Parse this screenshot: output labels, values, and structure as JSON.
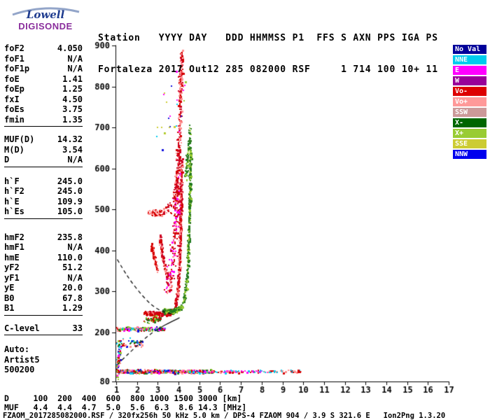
{
  "logo": {
    "name": "Lowell",
    "product": "DIGISONDE"
  },
  "header": {
    "line1": "Station   YYYY DAY   DDD HHMMSS P1  FFS S AXN PPS IGA PS",
    "line2": "Fortaleza 2017 Out12 285 082000 RSF     1 714 100 10+ 11"
  },
  "params": {
    "groups": [
      {
        "rows": [
          {
            "label": "foF2",
            "value": "4.050"
          },
          {
            "label": "foF1",
            "value": "N/A"
          },
          {
            "label": "foF1p",
            "value": "N/A"
          },
          {
            "label": "foE",
            "value": "1.41"
          },
          {
            "label": "foEp",
            "value": "1.25"
          },
          {
            "label": "fxI",
            "value": "4.50"
          },
          {
            "label": "foEs",
            "value": "3.75"
          },
          {
            "label": "fmin",
            "value": "1.35"
          }
        ]
      },
      {
        "rows": [
          {
            "label": "MUF(D)",
            "value": "14.32"
          },
          {
            "label": "M(D)",
            "value": "3.54"
          },
          {
            "label": "D",
            "value": "N/A"
          }
        ]
      },
      {
        "rows": [
          {
            "label": "h`F",
            "value": "245.0"
          },
          {
            "label": "h`F2",
            "value": "245.0"
          },
          {
            "label": "h`E",
            "value": "109.9"
          },
          {
            "label": "h`Es",
            "value": "105.0"
          }
        ]
      },
      {
        "rows": [
          {
            "label": "hmF2",
            "value": "235.8"
          },
          {
            "label": "hmF1",
            "value": "N/A"
          },
          {
            "label": "hmE",
            "value": "110.0"
          },
          {
            "label": "yF2",
            "value": "51.2"
          },
          {
            "label": "yF1",
            "value": "N/A"
          },
          {
            "label": "yE",
            "value": "20.0"
          },
          {
            "label": "B0",
            "value": "67.8"
          },
          {
            "label": "B1",
            "value": "1.29"
          }
        ]
      },
      {
        "rows": [
          {
            "label": "C-level",
            "value": "33"
          }
        ]
      },
      {
        "rows": [
          {
            "label": "Auto:",
            "value": ""
          },
          {
            "label": "Artist5",
            "value": ""
          },
          {
            "label": "500200",
            "value": ""
          }
        ]
      }
    ]
  },
  "legend": {
    "items": [
      {
        "label": "No Val",
        "color": "#000099"
      },
      {
        "label": "NNE",
        "color": "#00ccee"
      },
      {
        "label": "E",
        "color": "#ff00ff"
      },
      {
        "label": "W",
        "color": "#990099"
      },
      {
        "label": "Vo-",
        "color": "#dd0000"
      },
      {
        "label": "Vo+",
        "color": "#ff9999"
      },
      {
        "label": "SSW",
        "color": "#cc9999"
      },
      {
        "label": "X-",
        "color": "#006600"
      },
      {
        "label": "X+",
        "color": "#99cc33"
      },
      {
        "label": "SSE",
        "color": "#cccc33"
      },
      {
        "label": "NNW",
        "color": "#0000ee"
      }
    ]
  },
  "footer": {
    "d_line": "D     100  200  400  600  800 1000 1500 3000 [km]",
    "muf_line": "MUF   4.4  4.4  4.7  5.0  5.6  6.3  8.6 14.3 [MHz]",
    "info_line": "FZAOM_2017285082000.RSF / 320fx256h 50 kHz 5.0 km / DPS-4 FZAOM 904 / 3.9 S 321.6 E   Ion2Png 1.3.20"
  },
  "chart_data": {
    "type": "scatter",
    "title": "",
    "xlabel": "[MHz]",
    "ylabel": "[km]",
    "xlim": [
      1,
      17
    ],
    "ylim": [
      80,
      900
    ],
    "x_ticks": [
      1,
      2,
      3,
      4,
      5,
      6,
      7,
      8,
      9,
      10,
      11,
      12,
      13,
      14,
      15,
      16,
      17
    ],
    "y_ticks": [
      80,
      200,
      300,
      400,
      500,
      600,
      700,
      800,
      900
    ],
    "grid": false,
    "legend_position": "right",
    "muf_table": {
      "distances_km": [
        100,
        200,
        400,
        600,
        800,
        1000,
        1500,
        3000
      ],
      "muf_mhz": [
        4.4,
        4.4,
        4.7,
        5.0,
        5.6,
        6.3,
        8.6,
        14.3
      ]
    },
    "key_values": {
      "foF2_mhz": 4.05,
      "fxI_mhz": 4.5,
      "foEs_mhz": 3.75,
      "hF_km": 245.0,
      "hEs_km": 105.0,
      "hmF2_km": 235.8
    },
    "series": [
      {
        "name": "es-layer-dense",
        "anchors": [
          [
            1.0,
            104
          ],
          [
            5.6,
            104
          ]
        ],
        "count": 620,
        "jitter_f": 0.06,
        "jitter_h": 5,
        "colors": [
          "#d40000",
          "#d40000",
          "#d40000",
          "#ff8f8f",
          "#ff8f8f",
          "#ff00ff",
          "#00ccee",
          "#1111dd",
          "#1e7a1e",
          "#99cc33"
        ]
      },
      {
        "name": "es-layer-sparse",
        "anchors": [
          [
            5.6,
            104
          ],
          [
            8.2,
            104
          ]
        ],
        "count": 90,
        "jitter_f": 0.1,
        "jitter_h": 4,
        "colors": [
          "#ff8f8f",
          "#d40000",
          "#ff00ff",
          "#00ccee"
        ]
      },
      {
        "name": "es-layer-sparse-2",
        "anchors": [
          [
            8.3,
            104
          ],
          [
            9.9,
            104
          ]
        ],
        "count": 40,
        "jitter_f": 0.08,
        "jitter_h": 4,
        "colors": [
          "#ff8f8f",
          "#d40000",
          "#00ccee"
        ]
      },
      {
        "name": "es-upper-band",
        "anchors": [
          [
            1.0,
            208
          ],
          [
            3.35,
            208
          ]
        ],
        "count": 170,
        "jitter_f": 0.05,
        "jitter_h": 6,
        "colors": [
          "#d40000",
          "#ff8f8f",
          "#00ccee",
          "#1111dd",
          "#1e7a1e",
          "#ff00ff",
          "#99cc33"
        ]
      },
      {
        "name": "lowfreq-noise",
        "anchors": [
          [
            1.02,
            95
          ],
          [
            1.18,
            160
          ]
        ],
        "count": 60,
        "jitter_f": 0.08,
        "jitter_h": 30,
        "colors": [
          "#00ccee",
          "#1111dd",
          "#d40000",
          "#ff8f8f",
          "#99cc33",
          "#ff00ff"
        ]
      },
      {
        "name": "left-noise-patch",
        "anchors": [
          [
            1.0,
            175
          ],
          [
            2.3,
            172
          ]
        ],
        "count": 55,
        "jitter_f": 0.12,
        "jitter_h": 12,
        "colors": [
          "#00ccee",
          "#1111dd",
          "#d40000",
          "#1e7a1e",
          "#ff8f8f"
        ]
      },
      {
        "name": "f-trace-o-flat",
        "anchors": [
          [
            2.35,
            247
          ],
          [
            3.0,
            244
          ],
          [
            3.5,
            246
          ],
          [
            3.8,
            252
          ]
        ],
        "count": 330,
        "jitter_f": 0.05,
        "jitter_h": 6,
        "colors": [
          "#d40000",
          "#d40000",
          "#cc0022",
          "#ff8f8f"
        ]
      },
      {
        "name": "f-trace-o-rise",
        "anchors": [
          [
            3.82,
            254
          ],
          [
            3.95,
            285
          ],
          [
            4.03,
            335
          ],
          [
            4.07,
            400
          ],
          [
            4.11,
            480
          ],
          [
            4.14,
            560
          ],
          [
            4.16,
            618
          ]
        ],
        "count": 430,
        "jitter_f": 0.07,
        "jitter_h": 12,
        "colors": [
          "#d40000",
          "#cc0022",
          "#ff8f8f"
        ]
      },
      {
        "name": "spread-f-o",
        "anchors": [
          [
            3.5,
            300
          ],
          [
            3.65,
            345
          ],
          [
            3.78,
            400
          ],
          [
            3.88,
            460
          ],
          [
            3.95,
            525
          ],
          [
            4.0,
            575
          ]
        ],
        "count": 230,
        "jitter_f": 0.2,
        "jitter_h": 28,
        "colors": [
          "#d40000",
          "#ff8f8f",
          "#ff00ff",
          "#cc0022"
        ]
      },
      {
        "name": "cusp-arc-1",
        "anchors": [
          [
            3.1,
            432
          ],
          [
            3.22,
            392
          ],
          [
            3.35,
            358
          ],
          [
            3.5,
            332
          ]
        ],
        "count": 120,
        "jitter_f": 0.06,
        "jitter_h": 12,
        "colors": [
          "#d40000",
          "#cc0022",
          "#ff8f8f"
        ]
      },
      {
        "name": "cusp-arc-2",
        "anchors": [
          [
            2.7,
            412
          ],
          [
            2.85,
            378
          ],
          [
            3.0,
            350
          ]
        ],
        "count": 80,
        "jitter_f": 0.06,
        "jitter_h": 10,
        "colors": [
          "#d40000",
          "#ff8f8f"
        ]
      },
      {
        "name": "f-trace-x-flat",
        "anchors": [
          [
            3.25,
            253
          ],
          [
            3.7,
            250
          ],
          [
            4.0,
            256
          ],
          [
            4.2,
            263
          ]
        ],
        "count": 190,
        "jitter_f": 0.06,
        "jitter_h": 7,
        "colors": [
          "#1e7a1e",
          "#99cc33",
          "#2e7d1e"
        ]
      },
      {
        "name": "f-trace-x-rise",
        "anchors": [
          [
            4.25,
            272
          ],
          [
            4.38,
            315
          ],
          [
            4.46,
            375
          ],
          [
            4.51,
            445
          ],
          [
            4.55,
            525
          ],
          [
            4.58,
            605
          ],
          [
            4.59,
            645
          ]
        ],
        "count": 360,
        "jitter_f": 0.06,
        "jitter_h": 12,
        "colors": [
          "#1e7a1e",
          "#2e7d1e",
          "#99cc33"
        ]
      },
      {
        "name": "second-order-o-flat",
        "anchors": [
          [
            2.5,
            490
          ],
          [
            3.3,
            493
          ]
        ],
        "count": 55,
        "jitter_f": 0.06,
        "jitter_h": 9,
        "colors": [
          "#d40000",
          "#ff8f8f"
        ]
      },
      {
        "name": "second-order-o-rise",
        "anchors": [
          [
            3.3,
            493
          ],
          [
            3.6,
            502
          ],
          [
            3.8,
            522
          ],
          [
            3.92,
            558
          ],
          [
            4.0,
            615
          ],
          [
            4.05,
            685
          ],
          [
            4.1,
            765
          ],
          [
            4.13,
            845
          ],
          [
            4.15,
            882
          ]
        ],
        "count": 340,
        "jitter_f": 0.12,
        "jitter_h": 20,
        "colors": [
          "#d40000",
          "#cc0022",
          "#ff8f8f"
        ]
      },
      {
        "name": "second-order-x",
        "anchors": [
          [
            4.35,
            575
          ],
          [
            4.5,
            645
          ],
          [
            4.56,
            690
          ]
        ],
        "count": 80,
        "jitter_f": 0.09,
        "jitter_h": 28,
        "colors": [
          "#1e7a1e",
          "#99cc33",
          "#2e7d1e"
        ]
      },
      {
        "name": "high-altitude-noise",
        "anchors": [
          [
            3.1,
            690
          ],
          [
            4.5,
            820
          ]
        ],
        "count": 26,
        "jitter_f": 0.45,
        "jitter_h": 90,
        "colors": [
          "#00ccee",
          "#1111dd",
          "#99cc33",
          "#ff00ff",
          "#cccc33"
        ]
      },
      {
        "name": "pre-trace-green",
        "anchors": [
          [
            2.4,
            228
          ],
          [
            3.15,
            233
          ]
        ],
        "count": 65,
        "jitter_f": 0.1,
        "jitter_h": 9,
        "colors": [
          "#1e7a1e",
          "#99cc33",
          "#d40000"
        ]
      }
    ],
    "profile_lines": [
      {
        "name": "model-valley-upper",
        "style": "dashed",
        "points": [
          [
            1.05,
            378
          ],
          [
            1.35,
            352
          ],
          [
            1.7,
            325
          ],
          [
            2.1,
            299
          ],
          [
            2.5,
            276
          ],
          [
            2.9,
            259
          ],
          [
            3.3,
            249
          ],
          [
            3.75,
            245
          ]
        ]
      },
      {
        "name": "model-underside",
        "style": "dashed",
        "points": [
          [
            1.05,
            121
          ],
          [
            1.35,
            136
          ],
          [
            1.7,
            153
          ],
          [
            2.1,
            172
          ],
          [
            2.5,
            190
          ],
          [
            2.85,
            203
          ]
        ]
      },
      {
        "name": "true-height-profile",
        "style": "solid",
        "points": [
          [
            2.85,
            203
          ],
          [
            3.2,
            214
          ],
          [
            3.5,
            222
          ],
          [
            3.75,
            228
          ],
          [
            3.95,
            233
          ],
          [
            4.05,
            235.8
          ]
        ]
      }
    ]
  }
}
